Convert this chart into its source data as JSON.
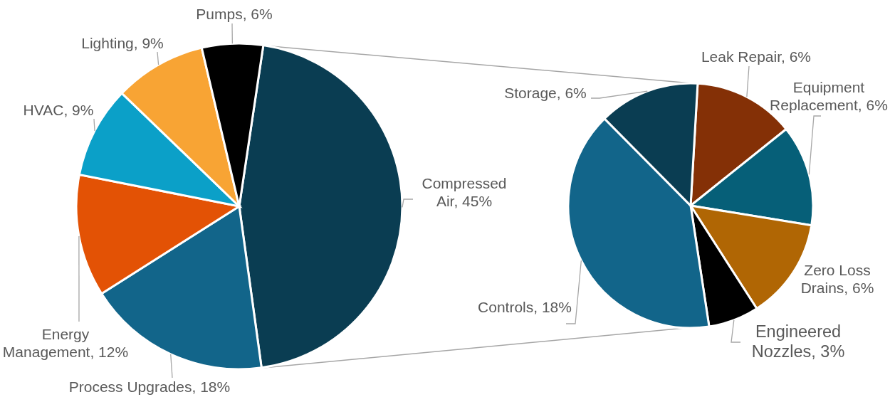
{
  "chart_data": [
    {
      "type": "pie",
      "categories": [
        "Compressed Air",
        "Process Upgrades",
        "Energy Management",
        "HVAC",
        "Lighting",
        "Pumps"
      ],
      "values": [
        45,
        18,
        12,
        9,
        9,
        6
      ],
      "value_labels": [
        "45%",
        "18%",
        "12%",
        "9%",
        "9%",
        "6%"
      ],
      "colors": [
        "#0a3d52",
        "#12658a",
        "#e35205",
        "#0ba0c8",
        "#f8a434",
        "#000000"
      ]
    },
    {
      "type": "pie",
      "categories": [
        "Leak Repair",
        "Equipment Replacement",
        "Zero Loss Drains",
        "Engineered Nozzles",
        "Controls",
        "Storage"
      ],
      "values": [
        6,
        6,
        6,
        3,
        18,
        6
      ],
      "value_labels": [
        "6%",
        "6%",
        "6%",
        "3%",
        "18%",
        "6%"
      ],
      "colors": [
        "#843006",
        "#065f78",
        "#b06604",
        "#000000",
        "#12658a",
        "#0a3d52"
      ]
    }
  ]
}
